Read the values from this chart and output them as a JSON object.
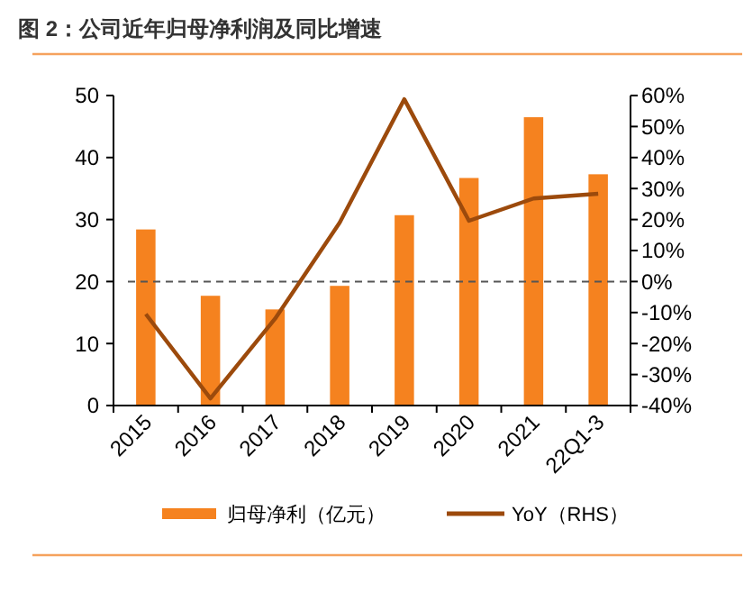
{
  "chart_data": {
    "type": "bar",
    "title": "图 2：公司近年归母净利润及同比增速",
    "categories": [
      "2015",
      "2016",
      "2017",
      "2018",
      "2019",
      "2020",
      "2021",
      "22Q1-3"
    ],
    "series": [
      {
        "name": "归母净利（亿元）",
        "color": "#f5821f",
        "values": [
          28.4,
          17.7,
          15.5,
          19.3,
          30.7,
          36.7,
          46.5,
          37.3
        ]
      },
      {
        "name": "YoY（RHS）",
        "type": "line",
        "axis": "y2",
        "color": "#9c4a0c",
        "values": [
          -10.5,
          -37.7,
          -12,
          19,
          58.8,
          19.6,
          26.8,
          28.3
        ]
      }
    ],
    "ylim": [
      0,
      50
    ],
    "yticks": [
      0,
      10,
      20,
      30,
      40,
      50
    ],
    "y2lim": [
      -40,
      60
    ],
    "y2ticks": [
      {
        "value": -40,
        "label": "-40%"
      },
      {
        "value": -30,
        "label": "-30%"
      },
      {
        "value": -20,
        "label": "-20%"
      },
      {
        "value": -10,
        "label": "-10%"
      },
      {
        "value": 0,
        "label": "0%"
      },
      {
        "value": 10,
        "label": "10%"
      },
      {
        "value": 20,
        "label": "20%"
      },
      {
        "value": 30,
        "label": "30%"
      },
      {
        "value": 40,
        "label": "40%"
      },
      {
        "value": 50,
        "label": "50%"
      },
      {
        "value": 60,
        "label": "60%"
      }
    ],
    "ref_lines": [
      {
        "axis": "y2",
        "value": 0,
        "color": "#555555",
        "line_style": "dashed"
      }
    ],
    "grid": false,
    "legend": "bottom",
    "marker": "none",
    "line_style": "solid"
  }
}
